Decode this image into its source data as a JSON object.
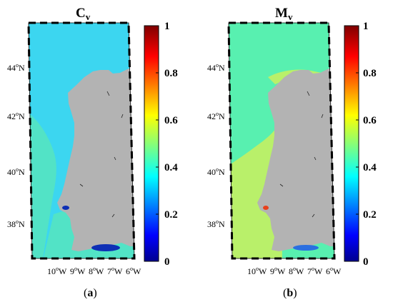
{
  "figure": {
    "panels": [
      {
        "id": "a",
        "title_main": "C",
        "title_sub": "v",
        "caption_open": "(",
        "caption_letter": "a",
        "caption_close": ")",
        "ocean_color": "#3cd6f0",
        "nearshore_color": "#52e3c6",
        "estuary_color": "#0d2fb5"
      },
      {
        "id": "b",
        "title_main": "M",
        "title_sub": "v",
        "caption_open": "(",
        "caption_letter": "b",
        "caption_close": ")",
        "ocean_color": "#58f0b0",
        "nearshore_color": "#b9f06a",
        "estuary_color": "#e8401c"
      }
    ],
    "lat_labels": [
      {
        "value": "44",
        "unit": "o",
        "dir": "N"
      },
      {
        "value": "42",
        "unit": "o",
        "dir": "N"
      },
      {
        "value": "40",
        "unit": "o",
        "dir": "N"
      },
      {
        "value": "38",
        "unit": "o",
        "dir": "N"
      }
    ],
    "lon_labels": [
      {
        "value": "10",
        "unit": "o",
        "dir": "W"
      },
      {
        "value": "9",
        "unit": "o",
        "dir": "W"
      },
      {
        "value": "8",
        "unit": "o",
        "dir": "W"
      },
      {
        "value": "7",
        "unit": "o",
        "dir": "W"
      },
      {
        "value": "6",
        "unit": "o",
        "dir": "W"
      }
    ],
    "colorbar": {
      "ticks": [
        "1",
        "0.8",
        "0.6",
        "0.4",
        "0.2",
        "0"
      ],
      "tick_values": [
        1,
        0.8,
        0.6,
        0.4,
        0.2,
        0
      ],
      "range": [
        0,
        1
      ],
      "colormap": "jet"
    },
    "land_color": "#b3b3b3"
  }
}
